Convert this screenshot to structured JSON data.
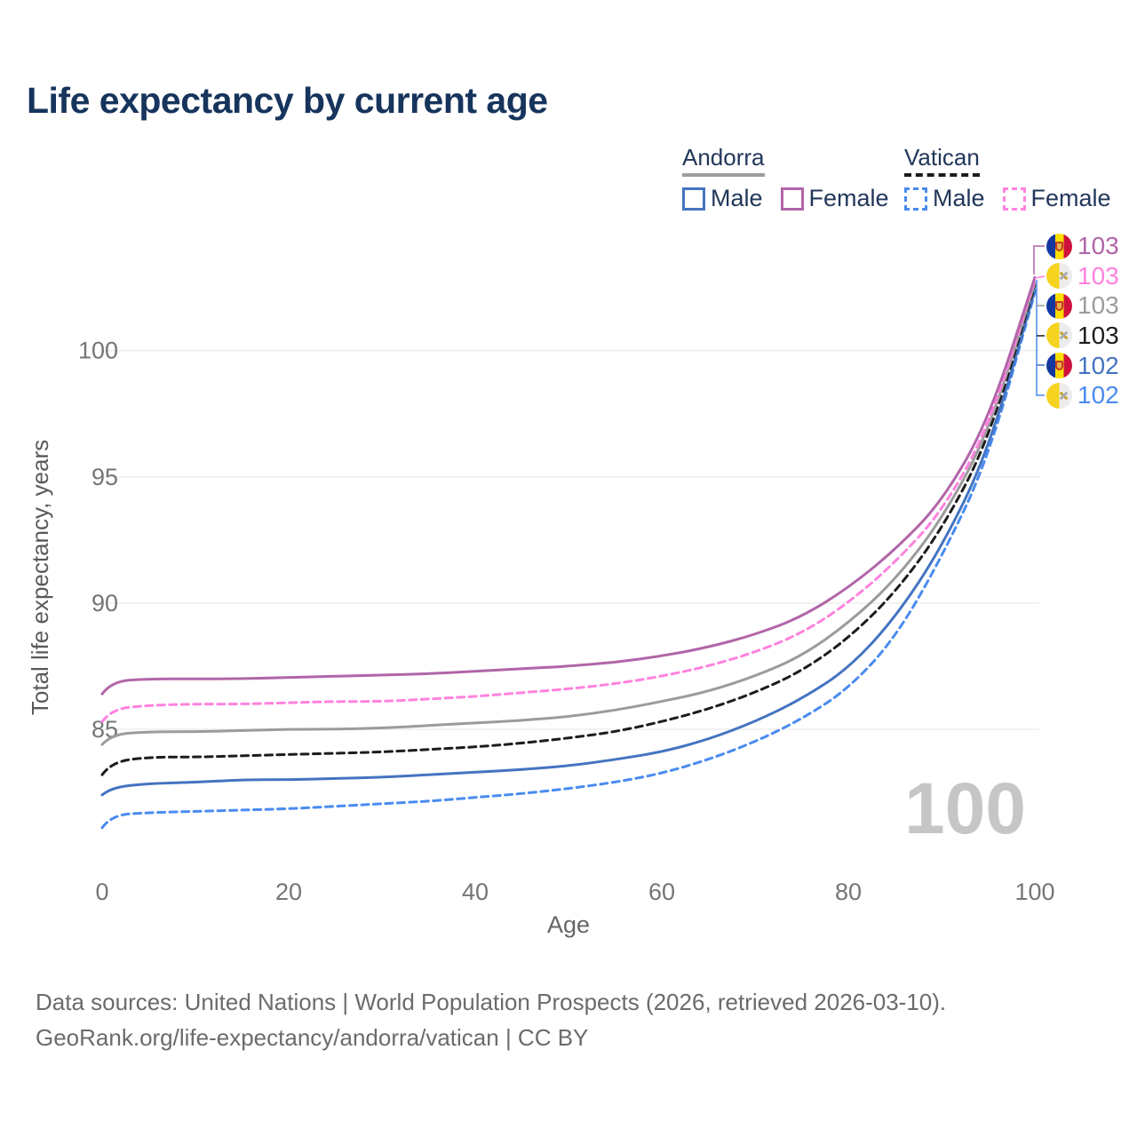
{
  "title": "Life expectancy by current age",
  "legend": {
    "groups": [
      {
        "country": "Andorra",
        "line_style": "solid",
        "underline_color": "#9e9e9e",
        "items": [
          {
            "id": "andorra-male",
            "label": "Male",
            "color": "#4474c1"
          },
          {
            "id": "andorra-female",
            "label": "Female",
            "color": "#b165a8"
          }
        ]
      },
      {
        "country": "Vatican",
        "line_style": "dashed",
        "underline_color": "#1c1c1c",
        "items": [
          {
            "id": "vatican-male",
            "label": "Male",
            "color": "#4a8bf0"
          },
          {
            "id": "vatican-female",
            "label": "Female",
            "color": "#ff82df"
          }
        ]
      }
    ]
  },
  "chart_data": {
    "type": "line",
    "title": "Life expectancy by current age",
    "xlabel": "Age",
    "ylabel": "Total life expectancy, years",
    "xticks": [
      0,
      20,
      40,
      60,
      80,
      100
    ],
    "yticks": [
      85,
      90,
      95,
      100
    ],
    "xlim": [
      0,
      100
    ],
    "ylim": [
      80.5,
      103.5
    ],
    "grid": "horizontal",
    "legend_position": "top-right",
    "age_indicator": "100",
    "x": [
      0,
      1,
      5,
      10,
      15,
      20,
      25,
      30,
      35,
      40,
      45,
      50,
      55,
      60,
      65,
      70,
      75,
      80,
      85,
      90,
      95,
      100
    ],
    "series": [
      {
        "id": "andorra-female",
        "name": "Andorra Female",
        "country": "Andorra",
        "sex": "Female",
        "line_style": "solid",
        "color": "#b165a8",
        "end_label": "103",
        "values": [
          86.4,
          86.9,
          87.0,
          87.0,
          87.0,
          87.05,
          87.1,
          87.15,
          87.2,
          87.3,
          87.4,
          87.5,
          87.65,
          87.9,
          88.25,
          88.75,
          89.45,
          90.6,
          92.1,
          94.0,
          97.2,
          102.9
        ]
      },
      {
        "id": "vatican-female",
        "name": "Vatican Female",
        "country": "Vatican",
        "sex": "Female",
        "line_style": "dashed",
        "color": "#ff82df",
        "end_label": "103",
        "values": [
          85.3,
          85.8,
          85.95,
          86.0,
          86.0,
          86.05,
          86.1,
          86.1,
          86.2,
          86.3,
          86.45,
          86.6,
          86.8,
          87.1,
          87.5,
          88.05,
          88.8,
          90.0,
          91.6,
          93.6,
          96.9,
          102.8
        ]
      },
      {
        "id": "andorra-all",
        "name": "Andorra",
        "country": "Andorra",
        "sex": "Both",
        "line_style": "solid",
        "color": "#9b9b9b",
        "end_label": "103",
        "values": [
          84.4,
          84.8,
          84.9,
          84.9,
          84.95,
          85.0,
          85.0,
          85.05,
          85.15,
          85.25,
          85.35,
          85.5,
          85.75,
          86.1,
          86.5,
          87.1,
          87.9,
          89.2,
          90.9,
          93.3,
          96.7,
          102.7
        ]
      },
      {
        "id": "vatican-all",
        "name": "Vatican",
        "country": "Vatican",
        "sex": "Both",
        "line_style": "dashed",
        "color": "#1c1c1c",
        "end_label": "103",
        "values": [
          83.2,
          83.7,
          83.9,
          83.9,
          83.95,
          84.0,
          84.05,
          84.1,
          84.2,
          84.3,
          84.45,
          84.65,
          84.9,
          85.3,
          85.8,
          86.45,
          87.3,
          88.6,
          90.4,
          92.9,
          96.4,
          102.6
        ]
      },
      {
        "id": "andorra-male",
        "name": "Andorra Male",
        "country": "Andorra",
        "sex": "Male",
        "line_style": "solid",
        "color": "#4474c1",
        "end_label": "102",
        "values": [
          82.4,
          82.7,
          82.85,
          82.9,
          83.0,
          83.0,
          83.05,
          83.1,
          83.2,
          83.3,
          83.4,
          83.55,
          83.8,
          84.1,
          84.6,
          85.3,
          86.2,
          87.4,
          89.4,
          92.2,
          96.0,
          102.4
        ]
      },
      {
        "id": "vatican-male",
        "name": "Vatican Male",
        "country": "Vatican",
        "sex": "Male",
        "line_style": "dashed",
        "color": "#4a8bf0",
        "end_label": "102",
        "values": [
          81.1,
          81.6,
          81.7,
          81.75,
          81.8,
          81.85,
          81.95,
          82.05,
          82.15,
          82.3,
          82.45,
          82.65,
          82.9,
          83.25,
          83.8,
          84.5,
          85.4,
          86.6,
          88.6,
          91.8,
          95.7,
          102.3
        ]
      }
    ]
  },
  "footer": {
    "line1": "Data sources: United Nations | World Population Prospects (2026, retrieved 2026-03-10).",
    "line2": "GeoRank.org/life-expectancy/andorra/vatican | CC BY"
  }
}
